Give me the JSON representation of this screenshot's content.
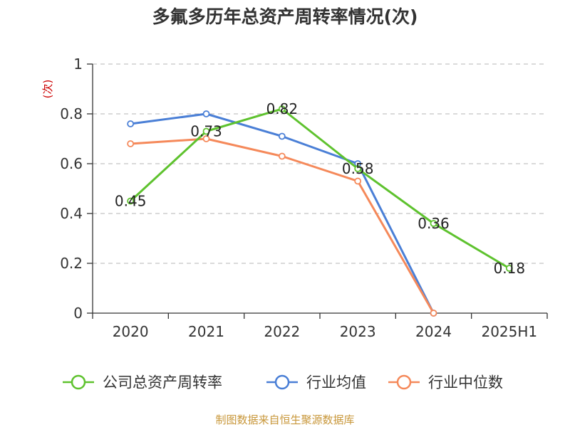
{
  "title": "多氟多历年总资产周转率情况(次)",
  "source": "制图数据来自恒生聚源数据库",
  "chart_data": {
    "type": "line",
    "title": "多氟多历年总资产周转率情况(次)",
    "ylabel": "(次)",
    "xlabel": "",
    "categories": [
      "2020",
      "2021",
      "2022",
      "2023",
      "2024",
      "2025H1"
    ],
    "y_ticks": [
      "0",
      "0.2",
      "0.4",
      "0.6",
      "0.8",
      "1"
    ],
    "ylim": [
      0,
      1
    ],
    "grid": "horizontal-dashed",
    "legend_position": "bottom",
    "series": [
      {
        "name": "公司总资产周转率",
        "color": "#5ec22e",
        "values": [
          0.45,
          0.73,
          0.82,
          0.58,
          0.36,
          0.18
        ],
        "labels": [
          "0.45",
          "0.73",
          "0.82",
          "0.58",
          "0.36",
          "0.18"
        ],
        "show_labels": true
      },
      {
        "name": "行业均值",
        "color": "#4a7fd6",
        "values": [
          0.76,
          0.8,
          0.71,
          0.6,
          0,
          null
        ],
        "show_labels": false
      },
      {
        "name": "行业中位数",
        "color": "#f5895a",
        "values": [
          0.68,
          0.7,
          0.63,
          0.53,
          0,
          null
        ],
        "show_labels": false
      }
    ]
  }
}
